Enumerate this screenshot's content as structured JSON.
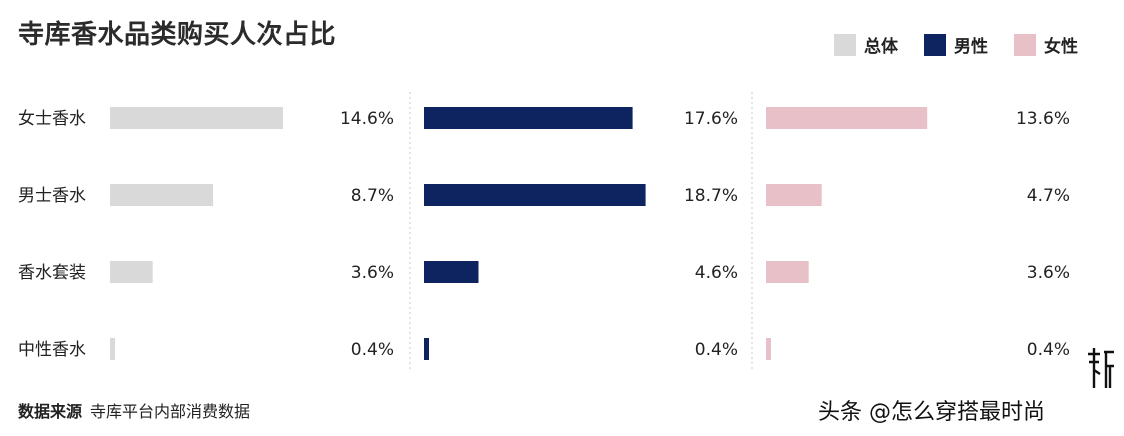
{
  "title": "寺库香水品类购买人次占比",
  "legend": [
    {
      "name": "总体",
      "color": "#d9d9d9"
    },
    {
      "name": "男性",
      "color": "#0d2461"
    },
    {
      "name": "女性",
      "color": "#e8c1c8"
    }
  ],
  "source": {
    "label": "数据来源",
    "text": "寺库平台内部消费数据"
  },
  "watermark": "头条 @怎么穿搭最时尚",
  "logo_text": "寺库",
  "chart_data": {
    "type": "bar",
    "title": "寺库香水品类购买人次占比",
    "categories": [
      "女士香水",
      "男士香水",
      "香水套装",
      "中性香水"
    ],
    "series": [
      {
        "name": "总体",
        "color": "#d9d9d9",
        "values": [
          14.6,
          8.7,
          3.6,
          0.4
        ],
        "labels": [
          "14.6%",
          "8.7%",
          "3.6%",
          "0.4%"
        ]
      },
      {
        "name": "男性",
        "color": "#0d2461",
        "values": [
          17.6,
          18.7,
          4.6,
          0.4
        ],
        "labels": [
          "17.6%",
          "18.7%",
          "4.6%",
          "0.4%"
        ]
      },
      {
        "name": "女性",
        "color": "#e8c1c8",
        "values": [
          13.6,
          4.7,
          3.6,
          0.4
        ],
        "labels": [
          "13.6%",
          "4.7%",
          "3.6%",
          "0.4%"
        ]
      }
    ],
    "orientation": "horizontal",
    "panels": "one panel per series, side by side",
    "grid": false,
    "legend_position": "top-right"
  }
}
